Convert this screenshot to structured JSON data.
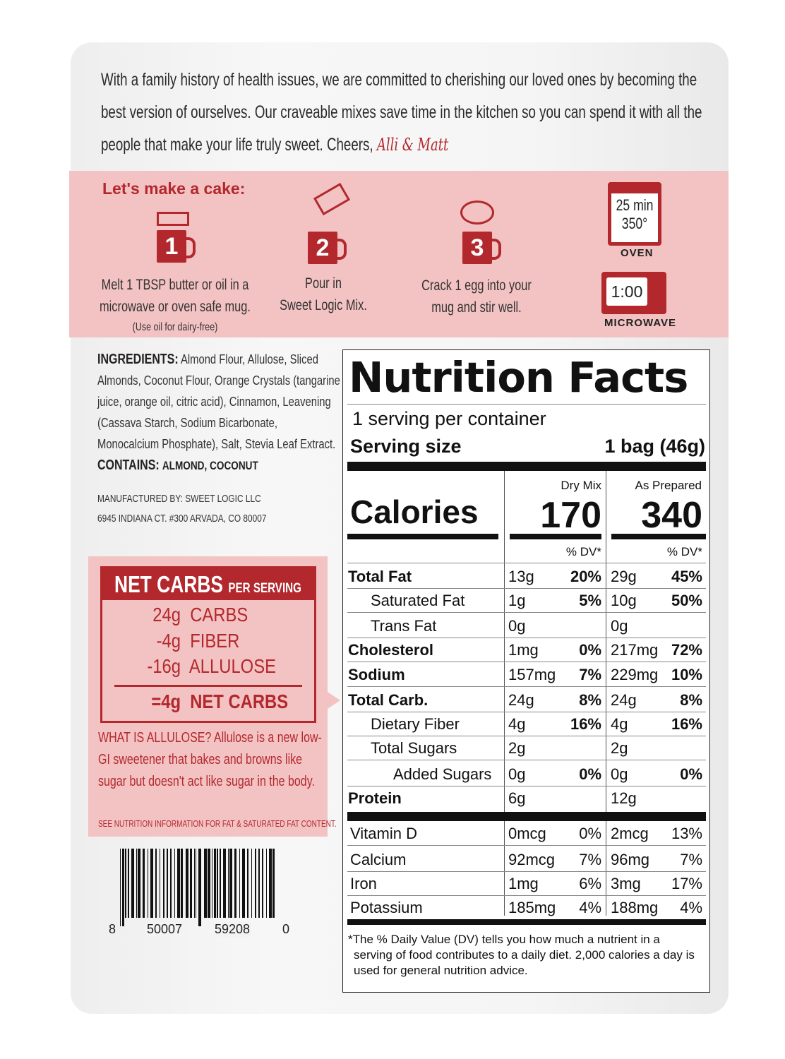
{
  "story": {
    "text": "With a family history of health issues, we are committed to cherishing our loved ones by becoming the best version of ourselves. Our craveable mixes save time in the kitchen so you can spend it with all the people that make your life truly sweet. Cheers,",
    "signature": "Alli & Matt"
  },
  "instructions": {
    "title": "Let's make a cake:",
    "steps": [
      {
        "number": "1",
        "text1": "Melt 1 TBSP butter or oil in a",
        "text2": "microwave or oven safe mug.",
        "note": "(Use oil for dairy-free)",
        "icon": "butter-icon"
      },
      {
        "number": "2",
        "text1": "Pour in",
        "text2": "Sweet Logic Mix.",
        "icon": "pour-mix-icon"
      },
      {
        "number": "3",
        "text1": "Crack 1 egg into your",
        "text2": "mug and stir well.",
        "icon": "egg-icon"
      }
    ],
    "oven": {
      "time": "25 min",
      "temp": "350°",
      "label": "OVEN"
    },
    "microwave": {
      "time": "1:00",
      "label": "MICROWAVE"
    }
  },
  "ingredients": {
    "label": "INGREDIENTS:",
    "text": "Almond Flour, Allulose, Sliced Almonds, Coconut Flour, Orange Crystals (tangarine juice, orange oil, citric acid), Cinnamon, Leavening (Cassava Starch, Sodium Bicarbonate, Monocalcium Phosphate), Salt, Stevia Leaf Extract.",
    "contains_label": "CONTAINS:",
    "contains": "ALMOND, COCONUT",
    "mfr1": "MANUFACTURED BY: SWEET LOGIC LLC",
    "mfr2": "6945 INDIANA CT. #300 ARVADA, CO 80007"
  },
  "net_carbs": {
    "title": "NET CARBS",
    "subtitle": "PER SERVING",
    "lines": [
      {
        "amount": "24g",
        "label": "CARBS"
      },
      {
        "amount": "-4g",
        "label": "FIBER"
      },
      {
        "amount": "-16g",
        "label": "ALLULOSE"
      }
    ],
    "result_amount": "=4g",
    "result_label": "NET CARBS",
    "allulose_text": "WHAT IS ALLULOSE? Allulose is a new low-GI sweetener that bakes and browns like sugar but doesn't act like sugar in the body.",
    "note": "SEE NUTRITION INFORMATION FOR FAT & SATURATED FAT CONTENT."
  },
  "barcode": {
    "d1": "8",
    "d2": "50007",
    "d3": "59208",
    "d4": "0"
  },
  "nutrition": {
    "title": "Nutrition Facts",
    "servings": "1 serving per container",
    "serving_size_label": "Serving size",
    "serving_size": "1 bag (46g)",
    "col1": "Dry Mix",
    "col2": "As Prepared",
    "calories_label": "Calories",
    "calories1": "170",
    "calories2": "340",
    "dv_label": "% DV*",
    "rows": [
      {
        "name": "Total Fat",
        "bold": true,
        "indent": 0,
        "a1": "13g",
        "d1": "20%",
        "a2": "29g",
        "d2": "45%"
      },
      {
        "name": "Saturated Fat",
        "bold": false,
        "indent": 1,
        "a1": "1g",
        "d1": "5%",
        "a2": "10g",
        "d2": "50%"
      },
      {
        "name": "Trans Fat",
        "bold": false,
        "indent": 1,
        "a1": "0g",
        "d1": "",
        "a2": "0g",
        "d2": ""
      },
      {
        "name": "Cholesterol",
        "bold": true,
        "indent": 0,
        "a1": "1mg",
        "d1": "0%",
        "a2": "217mg",
        "d2": "72%"
      },
      {
        "name": "Sodium",
        "bold": true,
        "indent": 0,
        "a1": "157mg",
        "d1": "7%",
        "a2": "229mg",
        "d2": "10%"
      },
      {
        "name": "Total Carb.",
        "bold": true,
        "indent": 0,
        "a1": "24g",
        "d1": "8%",
        "a2": "24g",
        "d2": "8%"
      },
      {
        "name": "Dietary Fiber",
        "bold": false,
        "indent": 1,
        "a1": "4g",
        "d1": "16%",
        "a2": "4g",
        "d2": "16%"
      },
      {
        "name": "Total Sugars",
        "bold": false,
        "indent": 1,
        "a1": "2g",
        "d1": "",
        "a2": "2g",
        "d2": ""
      },
      {
        "name": "Added Sugars",
        "bold": false,
        "indent": 2,
        "a1": "0g",
        "d1": "0%",
        "a2": "0g",
        "d2": "0%"
      },
      {
        "name": "Protein",
        "bold": true,
        "indent": 0,
        "a1": "6g",
        "d1": "",
        "a2": "12g",
        "d2": ""
      }
    ],
    "vitamins": [
      {
        "name": "Vitamin D",
        "a1": "0mcg",
        "d1": "0%",
        "a2": "2mcg",
        "d2": "13%"
      },
      {
        "name": "Calcium",
        "a1": "92mcg",
        "d1": "7%",
        "a2": "96mg",
        "d2": "7%"
      },
      {
        "name": "Iron",
        "a1": "1mg",
        "d1": "6%",
        "a2": "3mg",
        "d2": "17%"
      },
      {
        "name": "Potassium",
        "a1": "185mg",
        "d1": "4%",
        "a2": "188mg",
        "d2": "4%"
      }
    ],
    "footnote": "*The % Daily Value (DV) tells you how much a nutrient in a serving of food contributes to a daily diet. 2,000 calories a day is used for general nutrition advice."
  },
  "colors": {
    "brand_red": "#b3282d",
    "band_pink": "#f3c3c3"
  }
}
